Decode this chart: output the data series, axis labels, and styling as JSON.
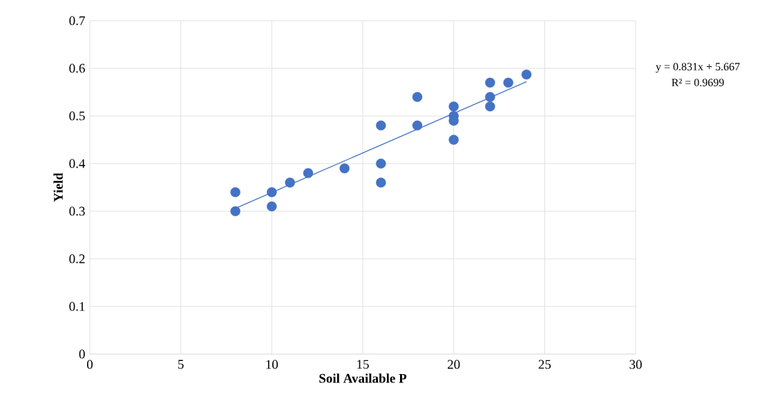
{
  "chart_data": {
    "type": "scatter",
    "xlabel": "Soil Available P",
    "ylabel": "Yield",
    "xlim": [
      0,
      30
    ],
    "xticks": [
      0,
      5,
      10,
      15,
      20,
      25,
      30
    ],
    "ylim": [
      0,
      0.7
    ],
    "yticks": [
      0,
      0.1,
      0.2,
      0.3,
      0.4,
      0.5,
      0.6,
      0.7
    ],
    "grid": true,
    "annotations": [
      "y = 0.831x + 5.667",
      "R² = 0.9699"
    ],
    "series": [
      {
        "marker": "circle",
        "color": "#4472c4",
        "x": [
          8,
          8,
          10,
          10,
          11,
          12,
          14,
          16,
          16,
          16,
          18,
          18,
          20,
          20,
          20,
          20,
          22,
          22,
          22,
          23,
          24
        ],
        "values": [
          0.34,
          0.3,
          0.34,
          0.31,
          0.36,
          0.38,
          0.39,
          0.48,
          0.4,
          0.36,
          0.54,
          0.48,
          0.52,
          0.5,
          0.49,
          0.45,
          0.57,
          0.54,
          0.52,
          0.57,
          0.587
        ]
      },
      {
        "type": "line",
        "marker": "none",
        "color": "#4472c4",
        "x": [
          8,
          24
        ],
        "values": [
          0.306,
          0.572
        ]
      }
    ]
  }
}
